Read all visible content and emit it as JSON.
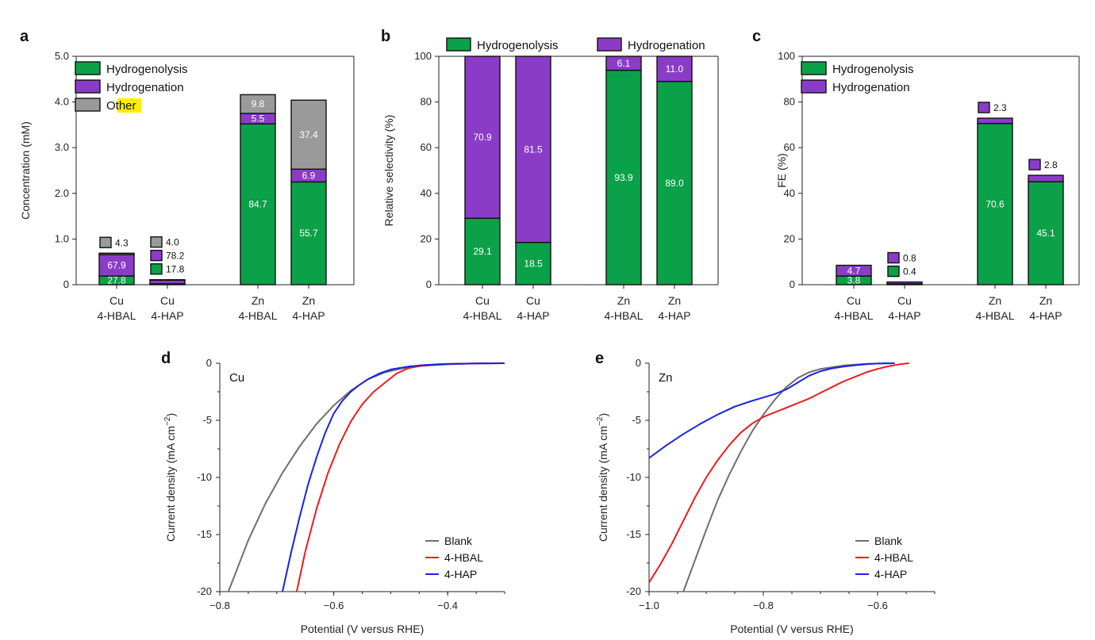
{
  "colors": {
    "hydrogenolysis": "#0aa148",
    "hydrogenation": "#8a3cc7",
    "other": "#9a9a9a",
    "blank": "#6e6e6e",
    "hbal": "#ee1b1b",
    "hap": "#1a22e0",
    "highlight": "#ffee00"
  },
  "chart_data": [
    {
      "id": "a",
      "type": "bar",
      "panel_letter": "a",
      "ylabel": "Concentration (mM)",
      "ylim": [
        0,
        5
      ],
      "yticks": [
        "0",
        "1.0",
        "2.0",
        "3.0",
        "4.0",
        "5.0"
      ],
      "categories": [
        "Cu\n4-HBAL",
        "Cu\n4-HAP",
        "Zn\n4-HBAL",
        "Zn\n4-HAP"
      ],
      "legend": {
        "position": "top-left",
        "entries": [
          "Hydrogenolysis",
          "Hydrogenation",
          "Other"
        ]
      },
      "series": [
        {
          "name": "Hydrogenolysis",
          "values": [
            0.19,
            0.02,
            3.52,
            2.25
          ],
          "labels": [
            "27.8",
            "17.8",
            "84.7",
            "55.7"
          ]
        },
        {
          "name": "Hydrogenation",
          "values": [
            0.47,
            0.08,
            0.23,
            0.28
          ],
          "labels": [
            "67.9",
            "78.2",
            "5.5",
            "6.9"
          ]
        },
        {
          "name": "Other",
          "values": [
            0.03,
            0.01,
            0.41,
            1.51
          ],
          "labels": [
            "4.3",
            "4.0",
            "9.8",
            "37.4"
          ]
        }
      ]
    },
    {
      "id": "b",
      "type": "bar",
      "panel_letter": "b",
      "ylabel": "Relative selectivity (%)",
      "ylim": [
        0,
        100
      ],
      "yticks": [
        "0",
        "20",
        "40",
        "60",
        "80",
        "100"
      ],
      "categories": [
        "Cu\n4-HBAL",
        "Cu\n4-HAP",
        "Zn\n4-HBAL",
        "Zn\n4-HAP"
      ],
      "legend": {
        "position": "top",
        "entries": [
          "Hydrogenolysis",
          "Hydrogenation"
        ]
      },
      "series": [
        {
          "name": "Hydrogenolysis",
          "values": [
            29.1,
            18.5,
            93.9,
            89.0
          ],
          "labels": [
            "29.1",
            "18.5",
            "93.9",
            "89.0"
          ]
        },
        {
          "name": "Hydrogenation",
          "values": [
            70.9,
            81.5,
            6.1,
            11.0
          ],
          "labels": [
            "70.9",
            "81.5",
            "6.1",
            "11.0"
          ]
        }
      ]
    },
    {
      "id": "c",
      "type": "bar",
      "panel_letter": "c",
      "ylabel": "FE (%)",
      "ylim": [
        0,
        100
      ],
      "yticks": [
        "0",
        "20",
        "40",
        "60",
        "80",
        "100"
      ],
      "categories": [
        "Cu\n4-HBAL",
        "Cu\n4-HAP",
        "Zn\n4-HBAL",
        "Zn\n4-HAP"
      ],
      "legend": {
        "position": "top-left",
        "entries": [
          "Hydrogenolysis",
          "Hydrogenation"
        ]
      },
      "series": [
        {
          "name": "Hydrogenolysis",
          "values": [
            3.8,
            0.4,
            70.6,
            45.1
          ],
          "labels": [
            "3.8",
            "0.4",
            "70.6",
            "45.1"
          ]
        },
        {
          "name": "Hydrogenation",
          "values": [
            4.7,
            0.8,
            2.3,
            2.8
          ],
          "labels": [
            "4.7",
            "0.8",
            "2.3",
            "2.8"
          ]
        }
      ]
    },
    {
      "id": "d",
      "type": "line",
      "panel_letter": "d",
      "title": "Cu",
      "xlabel": "Potential (V versus RHE)",
      "ylabel": "Current density (mA cm−2)",
      "xlim": [
        -0.8,
        -0.3
      ],
      "ylim": [
        -20,
        0
      ],
      "xticks": [
        -0.8,
        -0.6,
        -0.4
      ],
      "xtick_labels": [
        "−0.8",
        "−0.6",
        "−0.4"
      ],
      "yticks": [
        0,
        -5,
        -10,
        -15,
        -20
      ],
      "ytick_labels": [
        "0",
        "-5",
        "-10",
        "-15",
        "-20"
      ],
      "legend": {
        "position": "bottom-right",
        "entries": [
          "Blank",
          "4-HBAL",
          "4-HAP"
        ]
      },
      "series": [
        {
          "name": "Blank",
          "x": [
            -0.785,
            -0.75,
            -0.72,
            -0.69,
            -0.66,
            -0.63,
            -0.6,
            -0.57,
            -0.54,
            -0.51,
            -0.48,
            -0.45,
            -0.4,
            -0.35,
            -0.3
          ],
          "y": [
            -20,
            -15.5,
            -12.3,
            -9.6,
            -7.3,
            -5.3,
            -3.7,
            -2.4,
            -1.4,
            -0.8,
            -0.45,
            -0.25,
            -0.1,
            -0.03,
            0
          ]
        },
        {
          "name": "4-HBAL",
          "x": [
            -0.665,
            -0.65,
            -0.63,
            -0.61,
            -0.59,
            -0.57,
            -0.55,
            -0.53,
            -0.51,
            -0.49,
            -0.47,
            -0.45,
            -0.42,
            -0.38,
            -0.34,
            -0.3
          ],
          "y": [
            -20,
            -16.5,
            -12.7,
            -9.6,
            -7.1,
            -5.1,
            -3.6,
            -2.5,
            -1.7,
            -0.9,
            -0.45,
            -0.25,
            -0.1,
            -0.04,
            -0.01,
            0
          ]
        },
        {
          "name": "4-HAP",
          "x": [
            -0.69,
            -0.675,
            -0.66,
            -0.645,
            -0.63,
            -0.615,
            -0.6,
            -0.585,
            -0.57,
            -0.555,
            -0.54,
            -0.52,
            -0.5,
            -0.47,
            -0.44,
            -0.4,
            -0.35,
            -0.3
          ],
          "y": [
            -20,
            -16.6,
            -13.5,
            -10.6,
            -8.2,
            -6.1,
            -4.4,
            -3.3,
            -2.5,
            -1.9,
            -1.4,
            -0.9,
            -0.55,
            -0.3,
            -0.15,
            -0.06,
            -0.02,
            0
          ]
        }
      ]
    },
    {
      "id": "e",
      "type": "line",
      "panel_letter": "e",
      "title": "Zn",
      "xlabel": "Potential (V versus RHE)",
      "ylabel": "Current density (mA cm−2)",
      "xlim": [
        -1.0,
        -0.5
      ],
      "ylim": [
        -20,
        0
      ],
      "xticks": [
        -1.0,
        -0.8,
        -0.6
      ],
      "xtick_labels": [
        "−1.0",
        "−0.8",
        "−0.6"
      ],
      "yticks": [
        0,
        -5,
        -10,
        -15,
        -20
      ],
      "ytick_labels": [
        "0",
        "-5",
        "-10",
        "-15",
        "-20"
      ],
      "legend": {
        "position": "bottom-right",
        "entries": [
          "Blank",
          "4-HBAL",
          "4-HAP"
        ]
      },
      "series": [
        {
          "name": "Blank",
          "x": [
            -0.94,
            -0.92,
            -0.9,
            -0.88,
            -0.86,
            -0.84,
            -0.82,
            -0.8,
            -0.78,
            -0.76,
            -0.74,
            -0.72,
            -0.7,
            -0.66,
            -0.62,
            -0.58
          ],
          "y": [
            -20,
            -17.3,
            -14.6,
            -12.0,
            -9.8,
            -7.8,
            -6.0,
            -4.5,
            -3.2,
            -2.1,
            -1.3,
            -0.8,
            -0.5,
            -0.2,
            -0.05,
            0
          ]
        },
        {
          "name": "4-HBAL",
          "x": [
            -1.0,
            -0.98,
            -0.96,
            -0.94,
            -0.92,
            -0.9,
            -0.88,
            -0.86,
            -0.84,
            -0.82,
            -0.8,
            -0.78,
            -0.76,
            -0.74,
            -0.72,
            -0.7,
            -0.68,
            -0.66,
            -0.64,
            -0.62,
            -0.6,
            -0.58,
            -0.56,
            -0.545
          ],
          "y": [
            -19.2,
            -17.6,
            -15.8,
            -13.8,
            -11.8,
            -10.0,
            -8.5,
            -7.2,
            -6.1,
            -5.3,
            -4.7,
            -4.3,
            -3.9,
            -3.5,
            -3.1,
            -2.6,
            -2.1,
            -1.6,
            -1.2,
            -0.8,
            -0.5,
            -0.25,
            -0.08,
            0
          ]
        },
        {
          "name": "4-HAP",
          "x": [
            -1.0,
            -0.97,
            -0.94,
            -0.91,
            -0.88,
            -0.85,
            -0.82,
            -0.8,
            -0.78,
            -0.76,
            -0.74,
            -0.72,
            -0.7,
            -0.68,
            -0.66,
            -0.64,
            -0.62,
            -0.6,
            -0.57
          ],
          "y": [
            -8.3,
            -7.2,
            -6.2,
            -5.3,
            -4.5,
            -3.8,
            -3.3,
            -3.0,
            -2.7,
            -2.3,
            -1.7,
            -1.1,
            -0.7,
            -0.45,
            -0.3,
            -0.18,
            -0.09,
            -0.03,
            0
          ]
        }
      ]
    }
  ]
}
